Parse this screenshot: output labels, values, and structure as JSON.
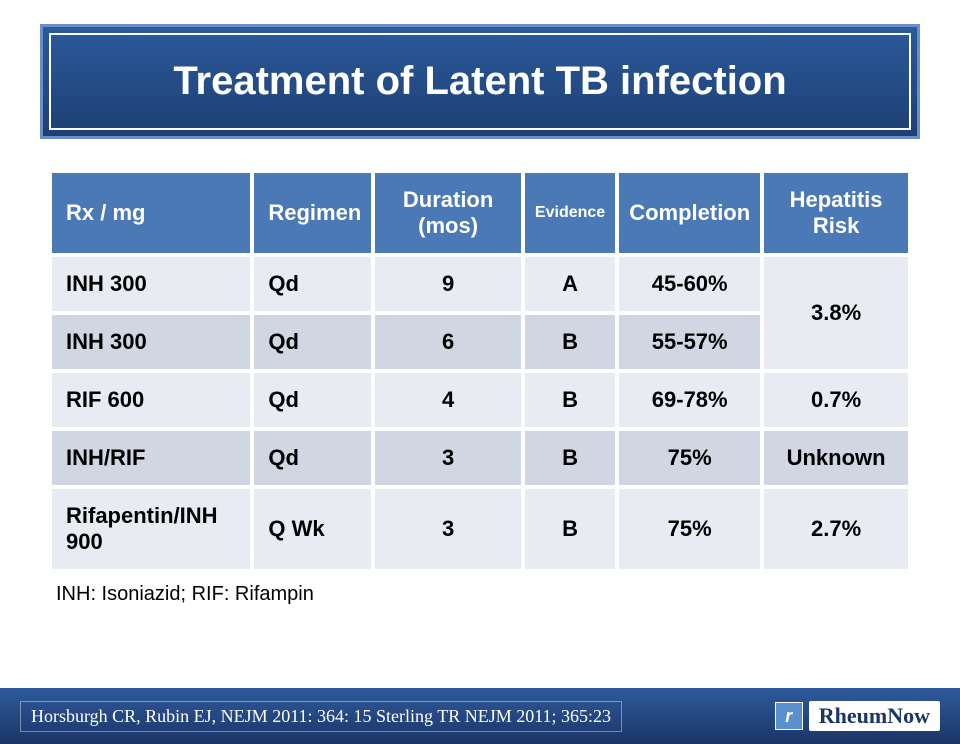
{
  "title": "Treatment of Latent TB infection",
  "table": {
    "columns": [
      {
        "label": "Rx / mg",
        "align": "left",
        "size": "large"
      },
      {
        "label": "Regimen",
        "align": "left",
        "size": "large"
      },
      {
        "label": "Duration (mos)",
        "align": "center",
        "size": "large"
      },
      {
        "label": "Evidence",
        "align": "center",
        "size": "small"
      },
      {
        "label": "Completion",
        "align": "center",
        "size": "large"
      },
      {
        "label": "Hepatitis Risk",
        "align": "center",
        "size": "large"
      }
    ],
    "rows": [
      {
        "rx": "INH 300",
        "regimen": "Qd",
        "duration": "9",
        "evidence": "A",
        "completion": "45-60%",
        "hep": "3.8%",
        "hep_rowspan": 2
      },
      {
        "rx": "INH 300",
        "regimen": "Qd",
        "duration": "6",
        "evidence": "B",
        "completion": "55-57%"
      },
      {
        "rx": "RIF  600",
        "regimen": "Qd",
        "duration": "4",
        "evidence": "B",
        "completion": "69-78%",
        "hep": "0.7%"
      },
      {
        "rx": "INH/RIF",
        "regimen": "Qd",
        "duration": "3",
        "evidence": "B",
        "completion": "75%",
        "hep": "Unknown"
      },
      {
        "rx": "Rifapentin/INH 900",
        "regimen": "Q Wk",
        "duration": "3",
        "evidence": "B",
        "completion": "75%",
        "hep": "2.7%"
      }
    ]
  },
  "footnote": "INH: Isoniazid;   RIF: Rifampin",
  "citation": "Horsburgh CR, Rubin EJ, NEJM 2011: 364: 15   Sterling TR  NEJM 2011; 365:23",
  "logo": {
    "icon_glyph": "r",
    "text": "RheumNow"
  },
  "colors": {
    "title_bg_top": "#2a5a9a",
    "title_bg_bottom": "#1e3f73",
    "title_border": "#6a8fc8",
    "header_bg": "#4b79b5",
    "row_bg": "#d0d6e2",
    "row_alt_bg": "#e8ebf1",
    "merged_bg": "#e0e4ec",
    "footer_top": "#2f5a9c",
    "footer_bottom": "#1a3567",
    "text_dark": "#000000",
    "text_light": "#ffffff"
  },
  "typography": {
    "title_fontsize": 40,
    "header_large_fontsize": 22,
    "header_small_fontsize": 16,
    "cell_fontsize": 22,
    "footnote_fontsize": 20,
    "citation_fontsize": 18
  }
}
